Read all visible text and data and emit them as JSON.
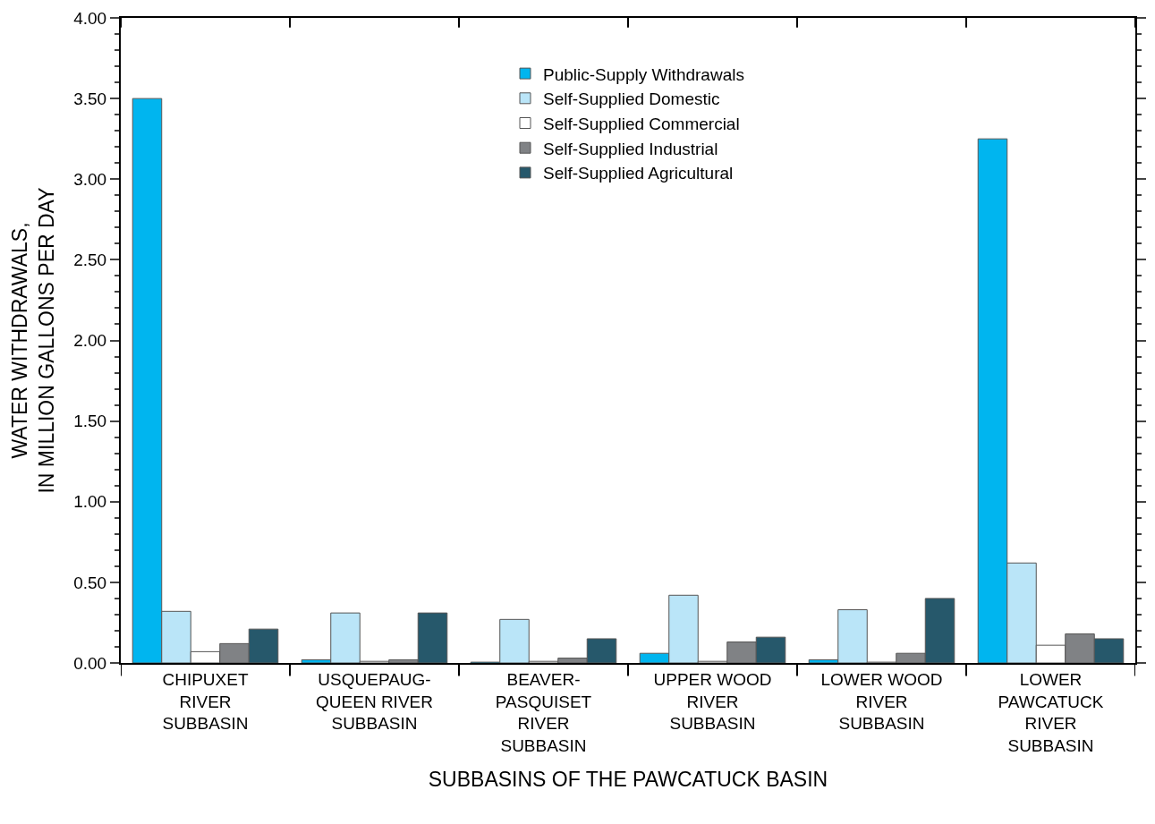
{
  "chart_data": {
    "type": "bar",
    "xlabel": "SUBBASINS OF THE PAWCATUCK BASIN",
    "ylabel": "WATER WITHDRAWALS,\nIN MILLION GALLONS PER DAY",
    "categories": [
      "CHIPUXET\nRIVER\nSUBBASIN",
      "USQUEPAUG-\nQUEEN RIVER\nSUBBASIN",
      "BEAVER-\nPASQUISET\nRIVER\nSUBBASIN",
      "UPPER WOOD\nRIVER\nSUBBASIN",
      "LOWER WOOD\nRIVER\nSUBBASIN",
      "LOWER\nPAWCATUCK\nRIVER\nSUBBASIN"
    ],
    "series": [
      {
        "name": "Public-Supply Withdrawals",
        "color": "#00b5ef",
        "values": [
          3.5,
          0.02,
          0.005,
          0.06,
          0.02,
          3.25
        ]
      },
      {
        "name": "Self-Supplied Domestic",
        "color": "#bae5f8",
        "values": [
          0.32,
          0.31,
          0.27,
          0.42,
          0.33,
          0.62
        ]
      },
      {
        "name": "Self-Supplied Commercial",
        "color": "#ffffff",
        "values": [
          0.07,
          0.01,
          0.01,
          0.01,
          0.005,
          0.11
        ]
      },
      {
        "name": "Self-Supplied Industrial",
        "color": "#808285",
        "values": [
          0.12,
          0.02,
          0.03,
          0.13,
          0.06,
          0.18
        ]
      },
      {
        "name": "Self-Supplied Agricultural",
        "color": "#26586b",
        "values": [
          0.21,
          0.31,
          0.15,
          0.16,
          0.4,
          0.15
        ]
      }
    ],
    "ylim": [
      0,
      4
    ],
    "yticks": [
      {
        "value": 0,
        "label": "0.00"
      },
      {
        "value": 0.5,
        "label": "0.50"
      },
      {
        "value": 1,
        "label": "1.00"
      },
      {
        "value": 1.5,
        "label": "1.50"
      },
      {
        "value": 2,
        "label": "2.00"
      },
      {
        "value": 2.5,
        "label": "2.50"
      },
      {
        "value": 3,
        "label": "3.00"
      },
      {
        "value": 3.5,
        "label": "3.50"
      },
      {
        "value": 4,
        "label": "4.00"
      }
    ],
    "legend": "top"
  }
}
